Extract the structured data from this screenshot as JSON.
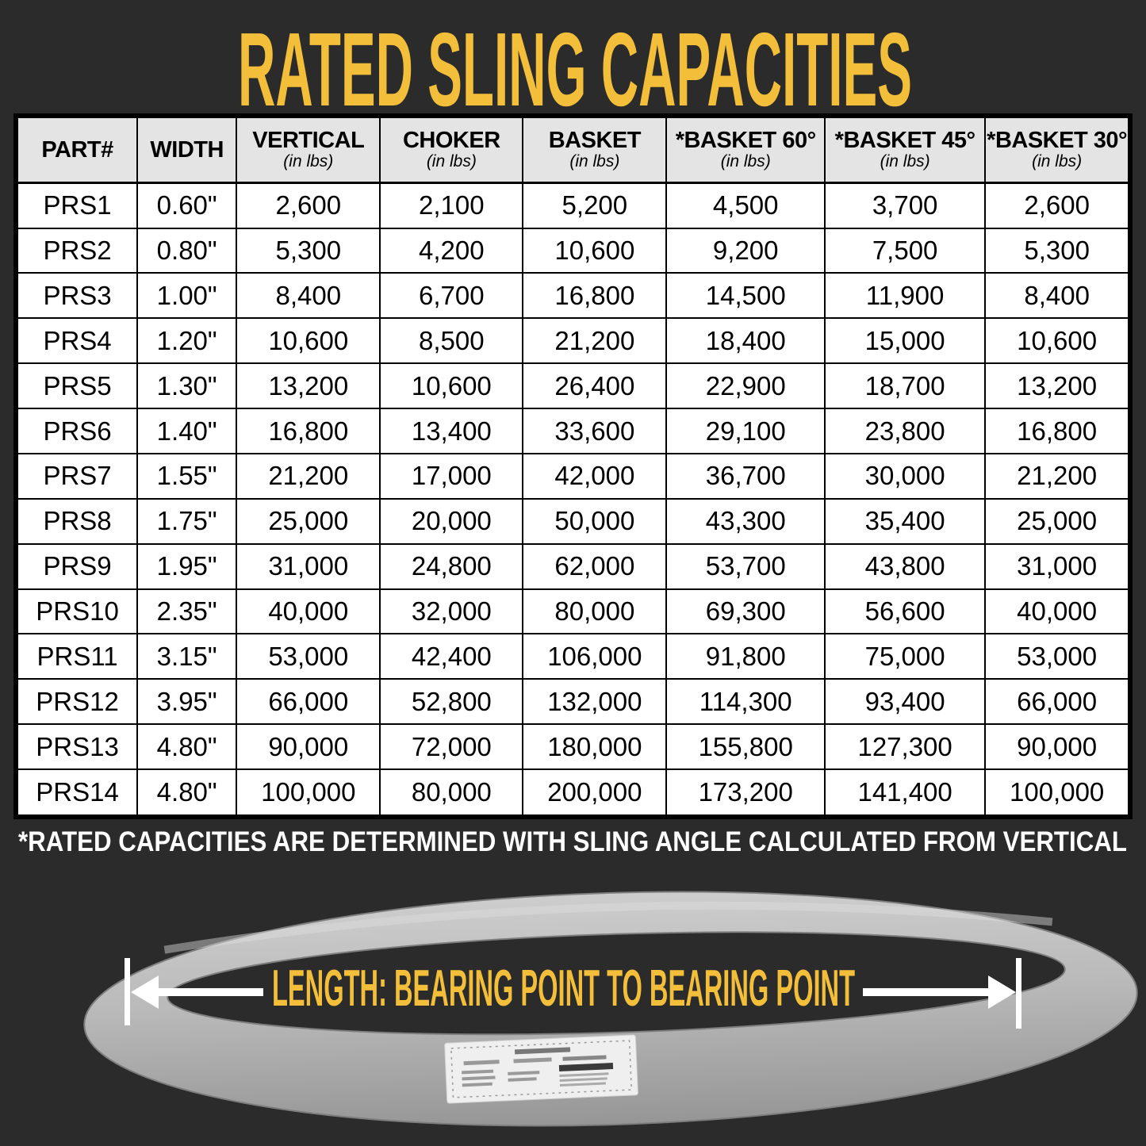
{
  "chart_data": {
    "type": "table",
    "title": "RATED SLING CAPACITIES",
    "columns": [
      {
        "label": "PART#",
        "sub": ""
      },
      {
        "label": "WIDTH",
        "sub": ""
      },
      {
        "label": "VERTICAL",
        "sub": "(in lbs)"
      },
      {
        "label": "CHOKER",
        "sub": "(in lbs)"
      },
      {
        "label": "BASKET",
        "sub": "(in lbs)"
      },
      {
        "label": "*BASKET 60°",
        "sub": "(in lbs)"
      },
      {
        "label": "*BASKET 45°",
        "sub": "(in lbs)"
      },
      {
        "label": "*BASKET 30°",
        "sub": "(in lbs)"
      }
    ],
    "rows": [
      [
        "PRS1",
        "0.60\"",
        "2,600",
        "2,100",
        "5,200",
        "4,500",
        "3,700",
        "2,600"
      ],
      [
        "PRS2",
        "0.80\"",
        "5,300",
        "4,200",
        "10,600",
        "9,200",
        "7,500",
        "5,300"
      ],
      [
        "PRS3",
        "1.00\"",
        "8,400",
        "6,700",
        "16,800",
        "14,500",
        "11,900",
        "8,400"
      ],
      [
        "PRS4",
        "1.20\"",
        "10,600",
        "8,500",
        "21,200",
        "18,400",
        "15,000",
        "10,600"
      ],
      [
        "PRS5",
        "1.30\"",
        "13,200",
        "10,600",
        "26,400",
        "22,900",
        "18,700",
        "13,200"
      ],
      [
        "PRS6",
        "1.40\"",
        "16,800",
        "13,400",
        "33,600",
        "29,100",
        "23,800",
        "16,800"
      ],
      [
        "PRS7",
        "1.55\"",
        "21,200",
        "17,000",
        "42,000",
        "36,700",
        "30,000",
        "21,200"
      ],
      [
        "PRS8",
        "1.75\"",
        "25,000",
        "20,000",
        "50,000",
        "43,300",
        "35,400",
        "25,000"
      ],
      [
        "PRS9",
        "1.95\"",
        "31,000",
        "24,800",
        "62,000",
        "53,700",
        "43,800",
        "31,000"
      ],
      [
        "PRS10",
        "2.35\"",
        "40,000",
        "32,000",
        "80,000",
        "69,300",
        "56,600",
        "40,000"
      ],
      [
        "PRS11",
        "3.15\"",
        "53,000",
        "42,400",
        "106,000",
        "91,800",
        "75,000",
        "53,000"
      ],
      [
        "PRS12",
        "3.95\"",
        "66,000",
        "52,800",
        "132,000",
        "114,300",
        "93,400",
        "66,000"
      ],
      [
        "PRS13",
        "4.80\"",
        "90,000",
        "72,000",
        "180,000",
        "155,800",
        "127,300",
        "90,000"
      ],
      [
        "PRS14",
        "4.80\"",
        "100,000",
        "80,000",
        "200,000",
        "173,200",
        "141,400",
        "100,000"
      ]
    ]
  },
  "footnote": "*RATED CAPACITIES ARE DETERMINED WITH SLING ANGLE CALCULATED FROM VERTICAL",
  "sling": {
    "length_label": "LENGTH: BEARING POINT TO BEARING POINT"
  },
  "colors": {
    "background": "#2b2b2b",
    "accent_yellow": "#f3be39",
    "header_bg": "#e4e4e4",
    "cell_bg": "#ffffff",
    "border": "#000000",
    "sling_gray": "#b3b3b3"
  }
}
